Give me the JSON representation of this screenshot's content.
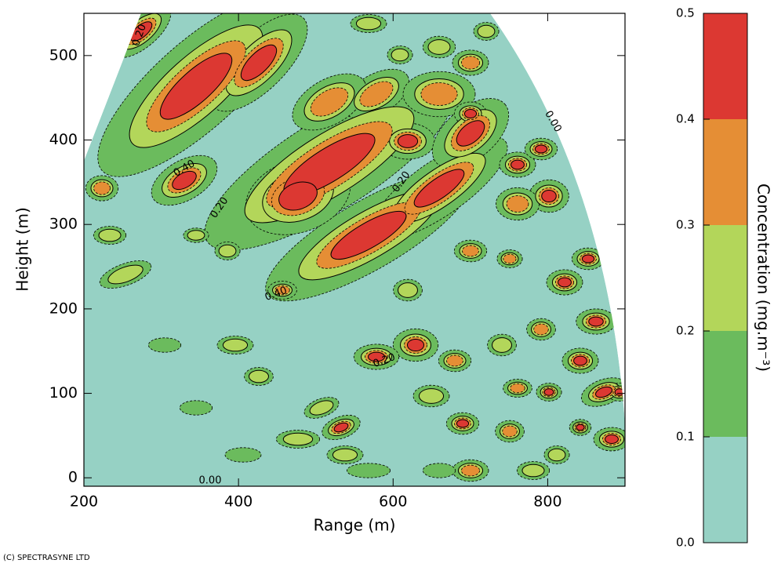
{
  "chart_data": {
    "type": "contour",
    "xlabel": "Range (m)",
    "ylabel": "Height (m)",
    "xlim": [
      200,
      900
    ],
    "xticks": [
      200,
      400,
      600,
      800
    ],
    "ylim": [
      -10,
      550
    ],
    "yticks": [
      0,
      100,
      200,
      300,
      400,
      500
    ],
    "colorbar": {
      "label": "Concentration (mg.m⁻³)",
      "bounds": [
        0,
        0.1,
        0.2,
        0.3,
        0.4,
        0.5
      ],
      "ticks": [
        {
          "value": 0,
          "label": "0.0"
        },
        {
          "value": 0.1,
          "label": "0.1"
        },
        {
          "value": 0.2,
          "label": "0.2"
        },
        {
          "value": 0.3,
          "label": "0.3"
        },
        {
          "value": 0.4,
          "label": "0.4"
        },
        {
          "value": 0.5,
          "label": "0.5"
        }
      ],
      "colors": [
        "#96d1c4",
        "#6bbb5d",
        "#b3d65a",
        "#e58e35",
        "#dc3832"
      ]
    },
    "contour_labels": [
      "0.00",
      "0.00",
      "0.20",
      "0.20",
      "0.40",
      "0.20",
      "0.40",
      "0.20"
    ],
    "credit": "(C) SPECTRASYNE LTD"
  }
}
